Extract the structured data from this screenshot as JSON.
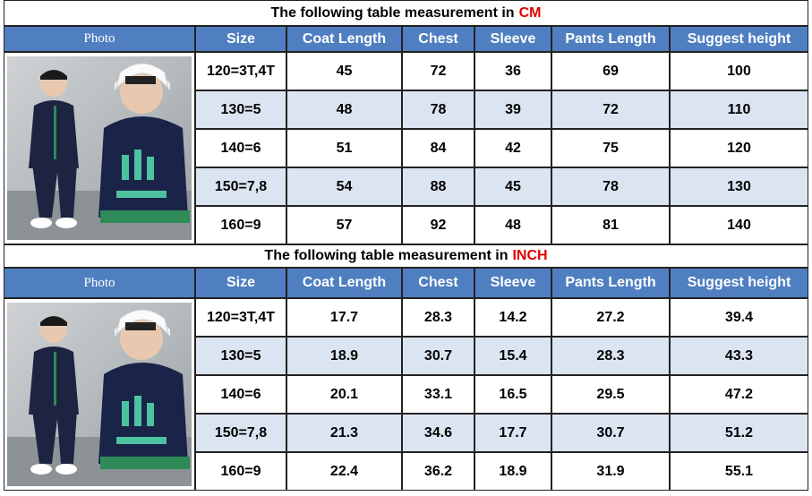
{
  "tables": [
    {
      "title": "The following table measurement in",
      "unit": "CM",
      "headers": [
        "Photo",
        "Size",
        "Coat Length",
        "Chest",
        "Sleeve",
        "Pants Length",
        "Suggest height"
      ],
      "rows": [
        [
          "120=3T,4T",
          "45",
          "72",
          "36",
          "69",
          "100"
        ],
        [
          "130=5",
          "48",
          "78",
          "39",
          "72",
          "110"
        ],
        [
          "140=6",
          "51",
          "84",
          "42",
          "75",
          "120"
        ],
        [
          "150=7,8",
          "54",
          "88",
          "45",
          "78",
          "130"
        ],
        [
          "160=9",
          "57",
          "92",
          "48",
          "81",
          "140"
        ]
      ]
    },
    {
      "title": "The following table measurement in",
      "unit": "INCH",
      "headers": [
        "Photo",
        "Size",
        "Coat Length",
        "Chest",
        "Sleeve",
        "Pants Length",
        "Suggest height"
      ],
      "rows": [
        [
          "120=3T,4T",
          "17.7",
          "28.3",
          "14.2",
          "27.2",
          "39.4"
        ],
        [
          "130=5",
          "18.9",
          "30.7",
          "15.4",
          "28.3",
          "43.3"
        ],
        [
          "140=6",
          "20.1",
          "33.1",
          "16.5",
          "29.5",
          "47.2"
        ],
        [
          "150=7,8",
          "21.3",
          "34.6",
          "17.7",
          "30.7",
          "51.2"
        ],
        [
          "160=9",
          "22.4",
          "36.2",
          "18.9",
          "31.9",
          "55.1"
        ]
      ]
    }
  ]
}
